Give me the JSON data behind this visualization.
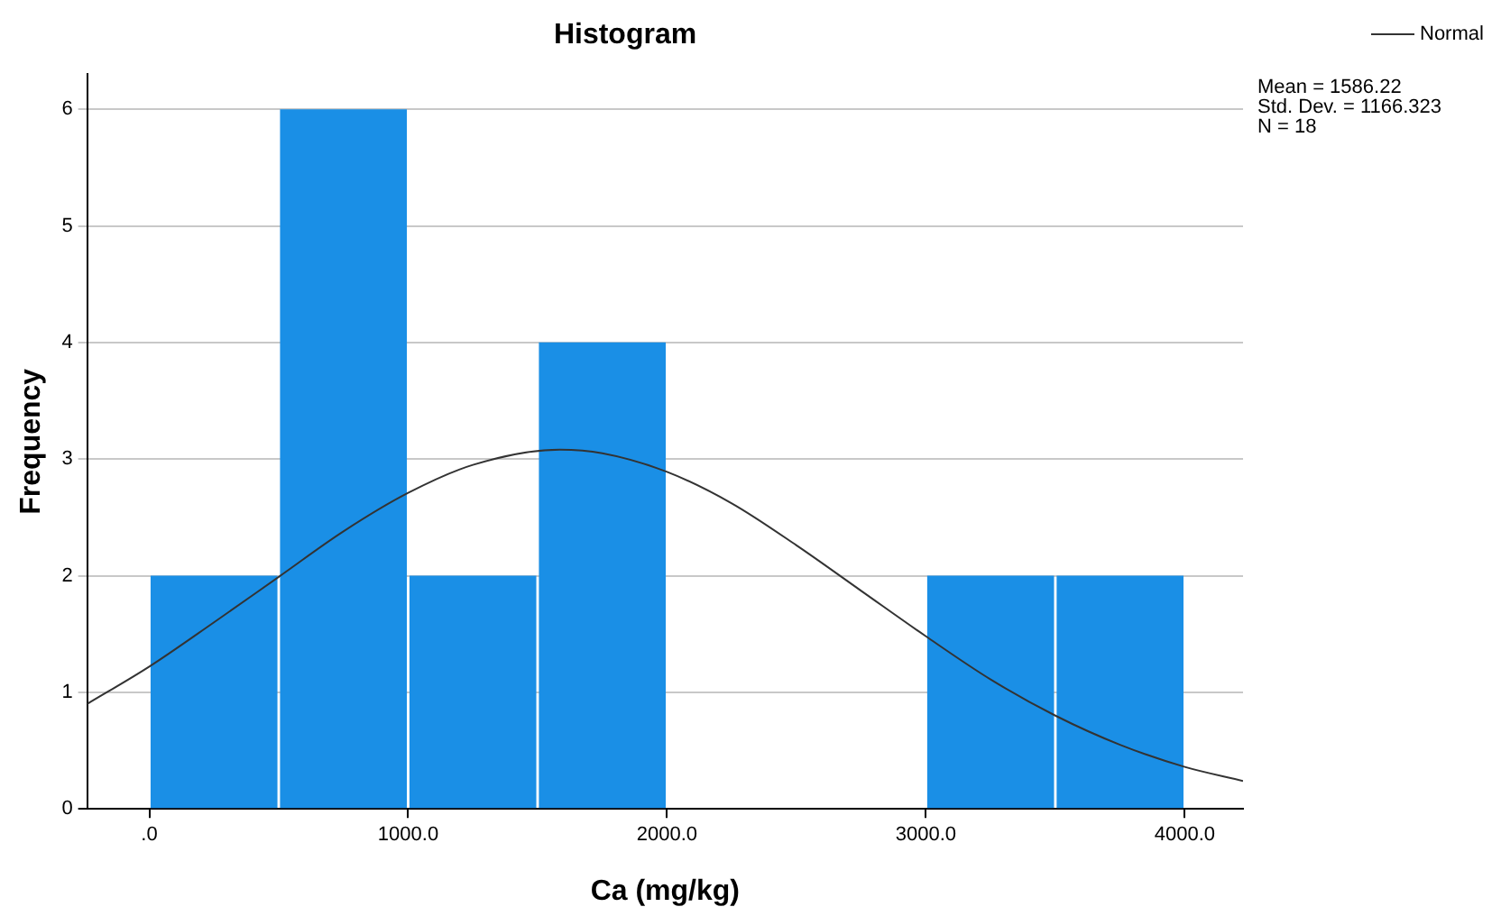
{
  "chart_data": {
    "type": "histogram",
    "title": "Histogram",
    "xlabel": "Ca (mg/kg)",
    "ylabel": "Frequency",
    "bins": [
      0,
      500,
      1000,
      1500,
      2000,
      2500,
      3000,
      3500,
      4000
    ],
    "values": [
      2,
      6,
      2,
      4,
      0,
      0,
      2,
      2
    ],
    "color": "#1a8fe6",
    "series": [
      {
        "name": "Normal",
        "type": "line",
        "color": "#333333",
        "x": [
          -240,
          0,
          250,
          500,
          750,
          1000,
          1250,
          1586,
          1750,
          2000,
          2250,
          2500,
          2750,
          3000,
          3250,
          3500,
          3750,
          4000,
          4225
        ],
        "values": [
          0.9,
          1.22,
          1.6,
          1.99,
          2.38,
          2.71,
          2.95,
          3.08,
          3.05,
          2.89,
          2.62,
          2.26,
          1.87,
          1.48,
          1.11,
          0.8,
          0.55,
          0.36,
          0.24
        ]
      }
    ],
    "xlim": [
      -240,
      4225
    ],
    "xticks": [
      {
        "value": 0,
        "label": ".0"
      },
      {
        "value": 1000,
        "label": "1000.0"
      },
      {
        "value": 2000,
        "label": "2000.0"
      },
      {
        "value": 3000,
        "label": "3000.0"
      },
      {
        "value": 4000,
        "label": "4000.0"
      }
    ],
    "ylim": [
      0,
      6.3
    ],
    "yticks": [
      0,
      1,
      2,
      3,
      4,
      5,
      6
    ],
    "grid": "y",
    "legend": "top right",
    "marker": "none",
    "line_style": "solid",
    "annotations": [
      "Mean = 1586.22",
      "Std. Dev. = 1166.323",
      "N = 18"
    ]
  }
}
